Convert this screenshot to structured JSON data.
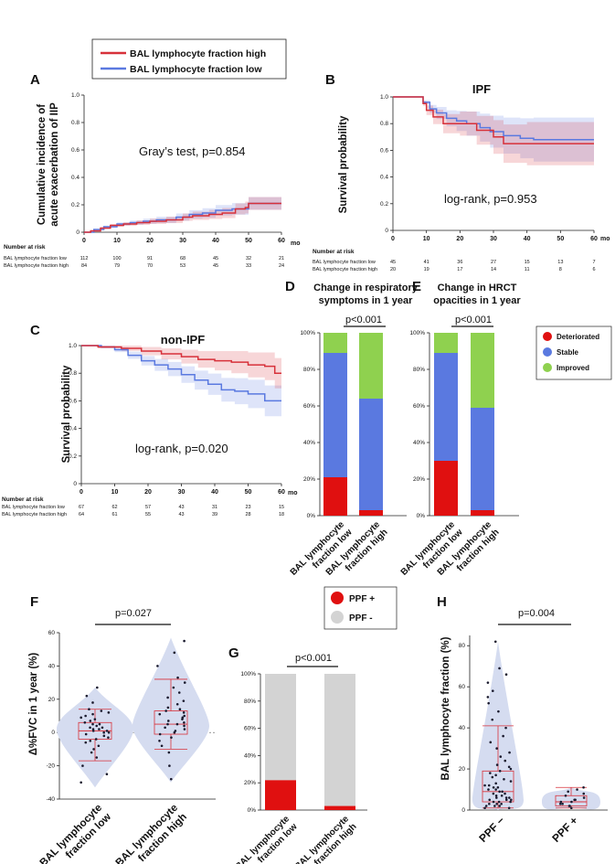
{
  "legend_top": {
    "high": "BAL lymphocyte fraction high",
    "low": "BAL lymphocyte fraction low",
    "high_color": "#d7313a",
    "low_color": "#5a79e0"
  },
  "panels": {
    "A": "A",
    "B": "B",
    "C": "C",
    "D": "D",
    "E": "E",
    "F": "F",
    "G": "G",
    "H": "H"
  },
  "mo_label": "mo",
  "risk_header": "Number at risk",
  "row_low": "BAL lymphocyte fraction low",
  "row_high": "BAL lymphocyte fraction high",
  "colors": {
    "high": "#d7313a",
    "low": "#5a79e0",
    "improved": "#8fd14f",
    "stable": "#5a79e0",
    "deteriorated": "#e01010",
    "ppf_pos": "#e01010",
    "ppf_neg": "#d3d3d3",
    "violin": "#d5dcf0"
  },
  "chart_data": [
    {
      "id": "A",
      "type": "line",
      "ylabel_1": "Cumulative incidence of",
      "ylabel_2": "acute exacerbation of IIP",
      "annotation": "Gray’s test, p=0.854",
      "xticks": [
        "0",
        "10",
        "20",
        "30",
        "40",
        "50",
        "60"
      ],
      "yticks": [
        "0",
        "0.2",
        "0.4",
        "0.6",
        "0.8",
        "1.0"
      ],
      "xlim": [
        0,
        60
      ],
      "ylim": [
        0,
        1
      ],
      "series": [
        {
          "name": "BAL lymphocyte fraction high",
          "x": [
            0,
            2,
            5,
            8,
            12,
            16,
            20,
            25,
            30,
            33,
            38,
            42,
            46,
            49,
            50,
            60
          ],
          "y": [
            0,
            0.01,
            0.03,
            0.05,
            0.06,
            0.07,
            0.08,
            0.09,
            0.11,
            0.12,
            0.13,
            0.14,
            0.17,
            0.18,
            0.21,
            0.21
          ]
        },
        {
          "name": "BAL lymphocyte fraction low",
          "x": [
            0,
            3,
            6,
            10,
            14,
            18,
            22,
            28,
            32,
            36,
            40,
            45,
            50,
            60
          ],
          "y": [
            0,
            0.02,
            0.04,
            0.06,
            0.07,
            0.08,
            0.09,
            0.11,
            0.13,
            0.14,
            0.16,
            0.17,
            0.21,
            0.21
          ]
        }
      ],
      "risk": {
        "ticks": [
          "0",
          "10",
          "20",
          "30",
          "40",
          "50",
          "60"
        ],
        "low": [
          "112",
          "100",
          "91",
          "68",
          "45",
          "32",
          "21"
        ],
        "high": [
          "84",
          "79",
          "70",
          "53",
          "45",
          "33",
          "24"
        ]
      }
    },
    {
      "id": "B",
      "type": "line",
      "title": "IPF",
      "ylabel": "Survival probability",
      "annotation": "log-rank, p=0.953",
      "xticks": [
        "0",
        "10",
        "20",
        "30",
        "40",
        "50",
        "60"
      ],
      "yticks": [
        "0",
        "0.2",
        "0.4",
        "0.6",
        "0.8",
        "1.0"
      ],
      "xlim": [
        0,
        60
      ],
      "ylim": [
        0,
        1
      ],
      "series": [
        {
          "name": "BAL lymphocyte fraction high",
          "x": [
            0,
            9,
            10,
            12,
            15,
            20,
            25,
            30,
            33,
            40,
            60
          ],
          "y": [
            1,
            0.95,
            0.9,
            0.85,
            0.8,
            0.8,
            0.75,
            0.7,
            0.65,
            0.65,
            0.65
          ]
        },
        {
          "name": "BAL lymphocyte fraction low",
          "x": [
            0,
            9,
            11,
            13,
            16,
            19,
            22,
            26,
            29,
            33,
            38,
            42,
            60
          ],
          "y": [
            1,
            0.96,
            0.91,
            0.88,
            0.84,
            0.82,
            0.8,
            0.77,
            0.74,
            0.71,
            0.69,
            0.68,
            0.68
          ]
        }
      ],
      "risk": {
        "ticks": [
          "0",
          "10",
          "20",
          "30",
          "40",
          "50",
          "60"
        ],
        "low": [
          "45",
          "41",
          "36",
          "27",
          "15",
          "13",
          "7"
        ],
        "high": [
          "20",
          "19",
          "17",
          "14",
          "11",
          "8",
          "6"
        ]
      }
    },
    {
      "id": "C",
      "type": "line",
      "title": "non-IPF",
      "ylabel": "Survival probability",
      "annotation": "log-rank, p=0.020",
      "xticks": [
        "0",
        "10",
        "20",
        "30",
        "40",
        "50",
        "60"
      ],
      "yticks": [
        "0",
        "0.2",
        "0.4",
        "0.6",
        "0.8",
        "1.0"
      ],
      "xlim": [
        0,
        60
      ],
      "ylim": [
        0,
        1
      ],
      "series": [
        {
          "name": "BAL lymphocyte fraction high",
          "x": [
            0,
            5,
            12,
            18,
            24,
            30,
            35,
            40,
            45,
            50,
            55,
            58,
            60
          ],
          "y": [
            1,
            0.99,
            0.98,
            0.96,
            0.94,
            0.92,
            0.9,
            0.89,
            0.88,
            0.86,
            0.85,
            0.8,
            0.8
          ]
        },
        {
          "name": "BAL lymphocyte fraction low",
          "x": [
            0,
            6,
            10,
            14,
            18,
            22,
            26,
            30,
            34,
            38,
            42,
            46,
            50,
            55,
            60
          ],
          "y": [
            1,
            0.99,
            0.97,
            0.93,
            0.89,
            0.86,
            0.83,
            0.79,
            0.75,
            0.72,
            0.68,
            0.67,
            0.65,
            0.6,
            0.6
          ]
        }
      ],
      "risk": {
        "ticks": [
          "0",
          "10",
          "20",
          "30",
          "40",
          "50",
          "60"
        ],
        "low": [
          "67",
          "62",
          "57",
          "43",
          "31",
          "23",
          "15"
        ],
        "high": [
          "64",
          "61",
          "55",
          "43",
          "39",
          "28",
          "18"
        ]
      }
    },
    {
      "id": "D",
      "type": "bar",
      "stacked": true,
      "title_1": "Change in respiratory",
      "title_2": "symptoms in 1 year",
      "pvalue": "p<0.001",
      "categories": [
        "BAL lymphocyte fraction low",
        "BAL lymphocyte fraction high"
      ],
      "cat_line1": "BAL lymphocyte",
      "cat_line2": [
        "fraction low",
        "fraction high"
      ],
      "yticks": [
        "0%",
        "20%",
        "40%",
        "60%",
        "80%",
        "100%"
      ],
      "series": [
        {
          "name": "Deteriorated",
          "values": [
            21,
            3
          ]
        },
        {
          "name": "Stable",
          "values": [
            68,
            61
          ]
        },
        {
          "name": "Improved",
          "values": [
            11,
            36
          ]
        }
      ]
    },
    {
      "id": "E",
      "type": "bar",
      "stacked": true,
      "title_1": "Change in HRCT",
      "title_2": "opacities in 1 year",
      "pvalue": "p<0.001",
      "categories": [
        "BAL lymphocyte fraction low",
        "BAL lymphocyte fraction high"
      ],
      "cat_line1": "BAL lymphocyte",
      "cat_line2": [
        "fraction low",
        "fraction high"
      ],
      "yticks": [
        "0%",
        "20%",
        "40%",
        "60%",
        "80%",
        "100%"
      ],
      "legend": [
        "Deteriorated",
        "Stable",
        "Improved"
      ],
      "series": [
        {
          "name": "Deteriorated",
          "values": [
            30,
            3
          ]
        },
        {
          "name": "Stable",
          "values": [
            59,
            56
          ]
        },
        {
          "name": "Improved",
          "values": [
            11,
            41
          ]
        }
      ]
    },
    {
      "id": "F",
      "type": "scatter",
      "ylabel": "Δ%FVC in 1 year (%)",
      "pvalue": "p=0.027",
      "yticks": [
        "-40",
        "-20",
        "0",
        "20",
        "40",
        "60"
      ],
      "ylim": [
        -40,
        60
      ],
      "categories": [
        "BAL lymphocyte fraction low",
        "BAL lymphocyte fraction high"
      ],
      "cat_line1": "BAL lymphocyte",
      "cat_line2": [
        "fraction low",
        "fraction high"
      ],
      "box": [
        {
          "min": -17,
          "q1": -4,
          "median": 1,
          "q3": 6,
          "max": 14
        },
        {
          "min": -10,
          "q1": -1,
          "median": 5,
          "q3": 13,
          "max": 32
        }
      ],
      "points": [
        [
          -30,
          -25,
          -20,
          -15,
          -12,
          -10,
          -8,
          -6,
          -5,
          -4,
          -3,
          -2,
          -1,
          0,
          0,
          1,
          1,
          2,
          2,
          3,
          3,
          4,
          5,
          5,
          6,
          7,
          8,
          9,
          10,
          11,
          12,
          13,
          14,
          18,
          22,
          27
        ],
        [
          -28,
          -20,
          -12,
          -8,
          -5,
          -3,
          -1,
          0,
          1,
          2,
          3,
          4,
          5,
          5,
          6,
          7,
          8,
          9,
          10,
          11,
          12,
          13,
          14,
          15,
          17,
          19,
          21,
          24,
          27,
          30,
          33,
          40,
          48,
          55
        ]
      ]
    },
    {
      "id": "G",
      "type": "bar",
      "stacked": true,
      "pvalue": "p<0.001",
      "categories": [
        "BAL lymphocyte fraction low",
        "BAL lymphocyte fraction high"
      ],
      "cat_line1": "BAL lymphocyte",
      "cat_line2": [
        "fraction low",
        "fraction high"
      ],
      "yticks": [
        "0%",
        "20%",
        "40%",
        "60%",
        "80%",
        "100%"
      ],
      "legend": [
        "PPF +",
        "PPF -"
      ],
      "series": [
        {
          "name": "PPF +",
          "values": [
            22,
            3
          ]
        },
        {
          "name": "PPF -",
          "values": [
            78,
            97
          ]
        }
      ]
    },
    {
      "id": "H",
      "type": "scatter",
      "ylabel": "BAL lymphocyte fraction (%)",
      "pvalue": "p=0.004",
      "yticks": [
        "0",
        "20",
        "40",
        "60",
        "80"
      ],
      "ylim": [
        0,
        85
      ],
      "categories": [
        "PPF −",
        "PPF +"
      ],
      "box": [
        {
          "min": 1,
          "q1": 4,
          "median": 9,
          "q3": 19,
          "max": 41
        },
        {
          "min": 1,
          "q1": 2,
          "median": 4,
          "q3": 7,
          "max": 11
        }
      ],
      "points": [
        [
          1,
          1,
          2,
          2,
          2,
          3,
          3,
          3,
          4,
          4,
          4,
          5,
          5,
          5,
          6,
          6,
          6,
          7,
          7,
          8,
          8,
          9,
          9,
          10,
          10,
          11,
          11,
          12,
          12,
          13,
          14,
          15,
          16,
          17,
          18,
          19,
          20,
          21,
          22,
          24,
          26,
          28,
          30,
          33,
          36,
          40,
          44,
          48,
          52,
          55,
          58,
          62,
          66,
          69,
          82
        ],
        [
          1,
          2,
          2,
          3,
          3,
          4,
          4,
          5,
          5,
          6,
          7,
          8,
          9,
          10,
          11
        ]
      ]
    }
  ]
}
